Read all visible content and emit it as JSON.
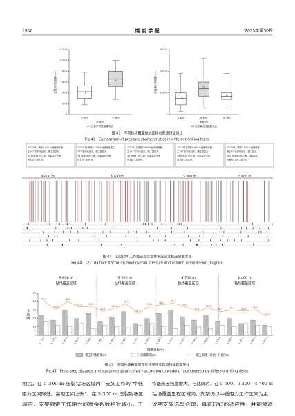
{
  "header": {
    "page": "1930",
    "journal": "煤 炭 学 报",
    "issue": "2025年第50卷"
  },
  "figure43": {
    "charts": [
      {
        "type": "box",
        "ylabel": "立柱平均压缩量/mm",
        "xlabel": "里程/m",
        "subcaption": "(c) 立柱平均压缩量对比",
        "categories": [
          "5 600",
          "5 300"
        ],
        "ylim": [
          0,
          1200
        ],
        "yticks": [
          0,
          200,
          400,
          600,
          800,
          {
            "value": 1000,
            "label": "1 000"
          },
          {
            "value": 1200,
            "label": "1 200"
          }
        ],
        "color": "#d9d9d9",
        "boxes": [
          {
            "min": 180,
            "q1": 300,
            "median": 420,
            "q3": 530,
            "max": 780,
            "mean": 410
          },
          {
            "min": 280,
            "q1": 520,
            "median": 660,
            "q3": 800,
            "max": 1000,
            "mean": 650
          }
        ]
      },
      {
        "type": "box",
        "ylabel": "立柱最大压缩量/mm",
        "xlabel": "里程/m",
        "subcaption": "(d) 立柱最大压缩量对比",
        "categories": [
          "5 600",
          "5 300",
          "4 700"
        ],
        "ylim": [
          0,
          3000
        ],
        "yticks": [
          0,
          {
            "value": 1000,
            "label": "1 000"
          },
          {
            "value": 2000,
            "label": "2 000"
          },
          {
            "value": 3000,
            "label": "3 000"
          }
        ],
        "color": "#d9d9d9",
        "boxes": [
          {
            "min": 150,
            "q1": 450,
            "median": 750,
            "q3": 1000,
            "max": 1900,
            "mean": 780
          },
          {
            "min": 300,
            "q1": 850,
            "median": 1200,
            "q3": 1500,
            "max": 2600,
            "mean": 1250
          },
          {
            "min": 300,
            "q1": 700,
            "median": 850,
            "q3": 1000,
            "max": 1900,
            "mean": 880
          }
        ]
      }
    ],
    "caption_cn": "图 43　不同钻场覆盖推进区段内来压特征对比",
    "caption_en": "Fig.43　Comparison of pressure characteristics in different drilling fields"
  },
  "figure44": {
    "notes": [
      [
        "122104工作面4 400 m钻场外开施",
        "工10个定向长钻孔，施工层位为",
        "34 m到54 m之间，压裂钻孔长度",
        "为330~490 m。"
      ],
      [
        "122104工作面4 700 m钻场外开施工",
        "13个定向长钻孔，施工层位为",
        "34 m到55 m之间，压裂钻孔长度",
        "为170~209 m。"
      ],
      [
        "122104工作面5 300 m钻场外开施",
        "工11个定向长钻孔，施工层位为",
        "25 m到51 m之间，压裂钻孔长度",
        "为180~220 m。"
      ],
      [
        "122104工作面5 600 m钻场外开施",
        "工14个定向长钻孔，施工层位为",
        "30 m到55 m之间，压裂钻孔长度",
        "为150~210 m。"
      ],
      [
        "122104工作面5 900 m钻场外开",
        "施工9个定向长钻孔，施工层位",
        "为20 m到50 m之间，压裂钻孔",
        "长度为170~230 m。"
      ]
    ],
    "regions": [
      "4 400 m",
      "4 700 m",
      "5 300 m",
      "5 600 m"
    ],
    "caption_cn": "图 44　122104 工作面压裂区整体来压及立柱压缩量示意",
    "caption_en": "Fig.44　122104 face fracturing zone overall pressure and column compression diagram"
  },
  "figure45": {
    "chart": {
      "type": "bar-line",
      "regions": [
        {
          "distance": "5 600 m",
          "label": "钻场覆盖区域"
        },
        {
          "distance": "5 300 m",
          "label": "钻场覆盖区域"
        },
        {
          "distance": "4 700 m",
          "label": "钻场覆盖区域"
        },
        {
          "distance": "4 400 m",
          "label": "钻场覆盖区域"
        }
      ],
      "ylabel": "距离/m",
      "xlabel": "推进里程/m",
      "ylim": [
        0,
        50
      ],
      "yticks": [
        0,
        10,
        20,
        30,
        40,
        50
      ],
      "categories": [
        "5 761.6",
        "5 707.2",
        "5 657.5",
        "5 601.6",
        "5 560.4",
        "5 495.3",
        "5 441.2",
        "5 380.1",
        "5 325.7",
        "5 262.0",
        "5 194.3",
        "5 120.9",
        "5 032.5",
        "4 945.8",
        "4 858.3",
        "4 776.0",
        "4 690.6",
        "4 601.4",
        "4 497.2",
        "4 405.1"
      ],
      "series": [
        {
          "name": "来压持续距离/m",
          "color": "#bdbdbd",
          "values": [
            24,
            18,
            30,
            20,
            26,
            16,
            22,
            28,
            14,
            20,
            26,
            30,
            22,
            18,
            24,
            16,
            20,
            14,
            18,
            12
          ]
        },
        {
          "name": "间隔距离/m",
          "color": "#ffffff",
          "values": [
            16,
            12,
            10,
            14,
            8,
            12,
            10,
            9,
            12,
            14,
            10,
            8,
            12,
            10,
            8,
            12,
            10,
            14,
            12,
            10
          ]
        },
        {
          "name": "来压步距 (开始−开始)/m",
          "color": "#e8a33c",
          "values": [
            40.5,
            30.6,
            40.1,
            34.2,
            34.3,
            28.5,
            32.1,
            37.2,
            26.1,
            34.3,
            36.2,
            38.1,
            34.2,
            28.4,
            32.3,
            28.2,
            30.1,
            28.6,
            30.5,
            22.4
          ]
        }
      ]
    },
    "caption_cn": "图 45　不同钻场覆盖里程区段来压步距和持续距离变化",
    "caption_en": "Fig.45　Press step distance and sustained distance vary according to working face covered by different drilling fields"
  },
  "body": {
    "left": [
      "相比，在 5 300 m 压裂钻场区域内，支架工作的“中低",
      "阻力区间降低、高阻区间上升”，在 5 300 m 压裂钻场区",
      "域内，支架额定工作阻力的富余系数相对减小，工"
    ],
    "right": [
      "作面来压强度增大。与此同时，在 5 600、5 300、4 700 m",
      "钻场覆盖里程区域内，支架仍以中低阻力工作区间为主，",
      "说明支架选型合理，具有较好的适应性，并能够适"
    ]
  }
}
